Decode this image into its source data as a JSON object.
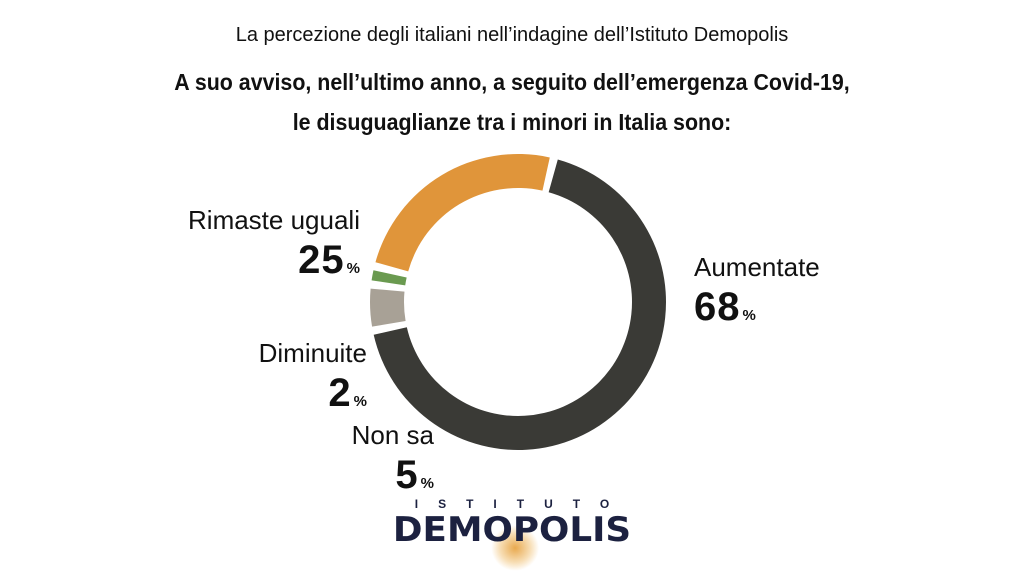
{
  "header": {
    "subtitle": "La percezione degli italiani nell’indagine dell’Istituto Demopolis",
    "title_line1": "A suo avviso, nell’ultimo anno, a seguito dell’emergenza Covid-19,",
    "title_line2": "le disuguaglianze tra i minori in Italia sono:"
  },
  "chart_data": {
    "type": "pie",
    "style": "donut",
    "categories": [
      "Aumentate",
      "Non sa",
      "Diminuite",
      "Rimaste uguali"
    ],
    "values": [
      68,
      5,
      2,
      25
    ],
    "unit": "%",
    "colors": {
      "Aumentate": "#3a3a36",
      "Non sa": "#a8a196",
      "Diminuite": "#6a9a50",
      "Rimaste uguali": "#e0953a"
    }
  },
  "labels": {
    "aumentate": {
      "name": "Aumentate",
      "num": "68",
      "unit": "%"
    },
    "rimaste": {
      "name": "Rimaste uguali",
      "num": "25",
      "unit": "%"
    },
    "diminuite": {
      "name": "Diminuite",
      "num": "2",
      "unit": "%"
    },
    "nonsa": {
      "name": "Non sa",
      "num": "5",
      "unit": "%"
    }
  },
  "logo": {
    "top": "ISTITUTO",
    "main": "DEMOPOLIS"
  }
}
